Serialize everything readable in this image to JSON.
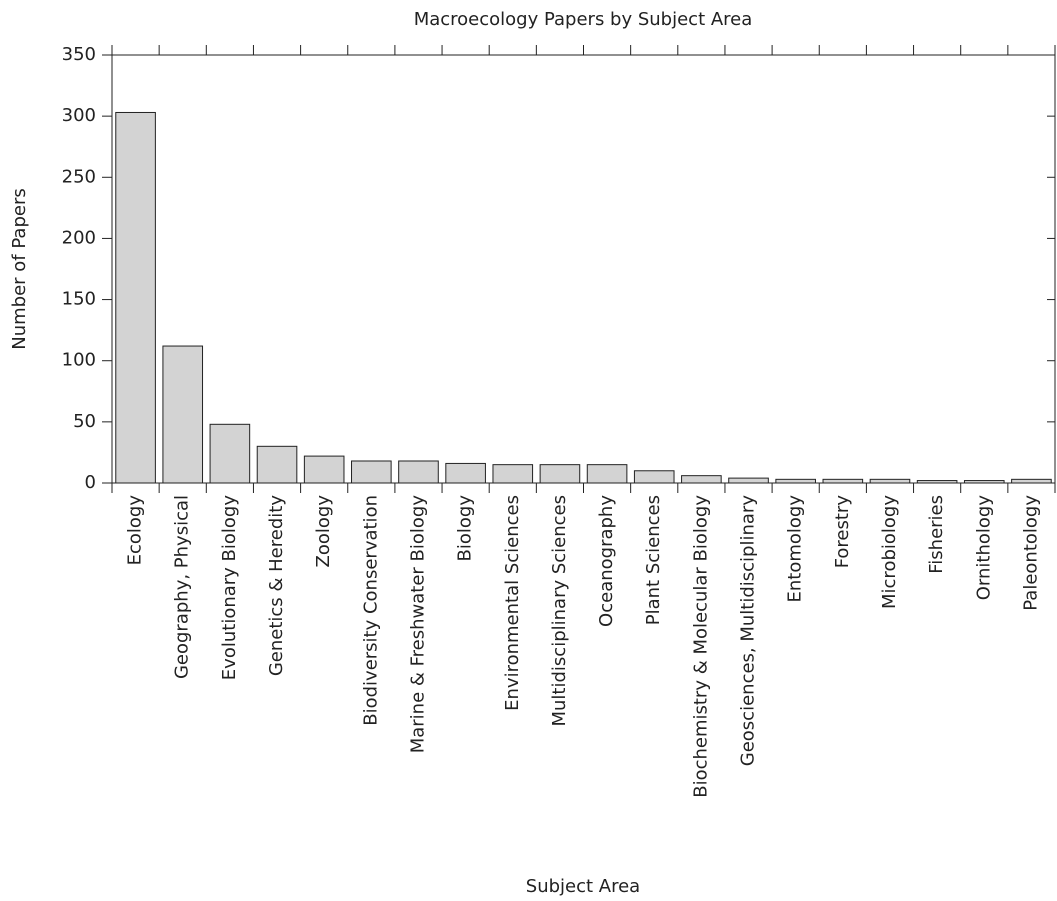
{
  "chart_data": {
    "type": "bar",
    "title": "Macroecology Papers by Subject Area",
    "x_label": "Subject Area",
    "y_label": "Number of Papers",
    "categories": [
      "Ecology",
      "Geography, Physical",
      "Evolutionary Biology",
      "Genetics & Heredity",
      "Zoology",
      "Biodiversity Conservation",
      "Marine & Freshwater Biology",
      "Biology",
      "Environmental Sciences",
      "Multidisciplinary Sciences",
      "Oceanography",
      "Plant Sciences",
      "Biochemistry & Molecular Biology",
      "Geosciences, Multidisciplinary",
      "Entomology",
      "Forestry",
      "Microbiology",
      "Fisheries",
      "Ornithology",
      "Paleontology"
    ],
    "values": [
      303,
      112,
      48,
      30,
      22,
      18,
      18,
      16,
      15,
      15,
      15,
      10,
      6,
      4,
      3,
      3,
      3,
      2,
      2,
      3
    ],
    "color": "#d3d3d3",
    "ylim": [
      0,
      350
    ],
    "yticks": [
      0,
      50,
      100,
      150,
      200,
      250,
      300,
      350
    ],
    "grid": false
  }
}
